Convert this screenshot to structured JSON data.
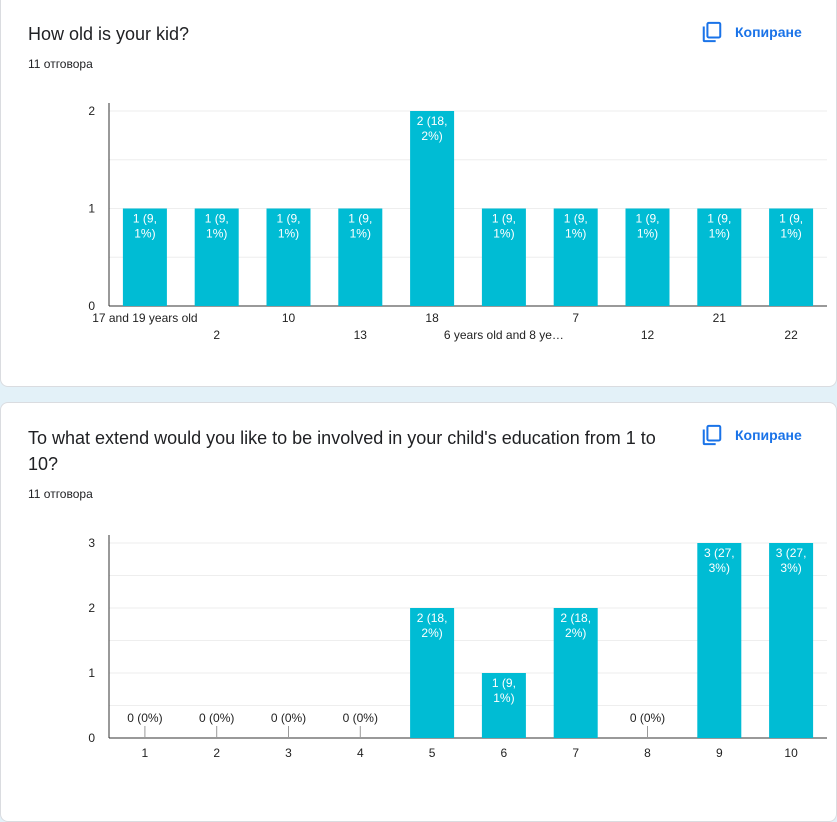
{
  "copy_label": "Копиране",
  "icon": "copy-icon",
  "colors": {
    "bar": "#00bcd4",
    "accent": "#1a73e8",
    "background": "#e3f1f8"
  },
  "questions": [
    {
      "title": "How old is your kid?",
      "responses": "11 отговора"
    },
    {
      "title": "To what extend would you like to be involved in your child's education from 1 to 10?",
      "responses": "11 отговора"
    }
  ],
  "chart_data": [
    {
      "type": "bar",
      "categories": [
        "17 and 19 years old",
        "2",
        "10",
        "13",
        "18",
        "6 years old and 8 ye…",
        "7",
        "12",
        "21",
        "22"
      ],
      "values": [
        1,
        1,
        1,
        1,
        2,
        1,
        1,
        1,
        1,
        1
      ],
      "data_labels": [
        [
          "1 (9,",
          "1%)"
        ],
        [
          "1 (9,",
          "1%)"
        ],
        [
          "1 (9,",
          "1%)"
        ],
        [
          "1 (9,",
          "1%)"
        ],
        [
          "2 (18,",
          "2%)"
        ],
        [
          "1 (9,",
          "1%)"
        ],
        [
          "1 (9,",
          "1%)"
        ],
        [
          "1 (9,",
          "1%)"
        ],
        [
          "1 (9,",
          "1%)"
        ],
        [
          "1 (9,",
          "1%)"
        ]
      ],
      "yticks": [
        "0",
        "1",
        "2"
      ],
      "ylim": [
        0,
        2
      ],
      "grid": true,
      "staggered_labels": true
    },
    {
      "type": "bar",
      "categories": [
        "1",
        "2",
        "3",
        "4",
        "5",
        "6",
        "7",
        "8",
        "9",
        "10"
      ],
      "values": [
        0,
        0,
        0,
        0,
        2,
        1,
        2,
        0,
        3,
        3
      ],
      "data_labels": [
        [
          "0 (0%)"
        ],
        [
          "0 (0%)"
        ],
        [
          "0 (0%)"
        ],
        [
          "0 (0%)"
        ],
        [
          "2 (18,",
          "2%)"
        ],
        [
          "1 (9,",
          "1%)"
        ],
        [
          "2 (18,",
          "2%)"
        ],
        [
          "0 (0%)"
        ],
        [
          "3 (27,",
          "3%)"
        ],
        [
          "3 (27,",
          "3%)"
        ]
      ],
      "yticks": [
        "0",
        "1",
        "2",
        "3"
      ],
      "ylim": [
        0,
        3
      ],
      "grid": true,
      "staggered_labels": false
    }
  ]
}
